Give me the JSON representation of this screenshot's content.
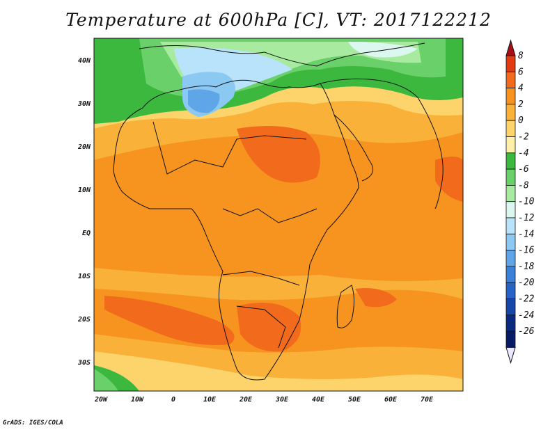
{
  "title": "Temperature at 600hPa [C], VT: 2017122212",
  "footer": "GrADS: IGES/COLA",
  "map": {
    "lat_labels": [
      "40N",
      "30N",
      "20N",
      "10N",
      "EQ",
      "10S",
      "20S",
      "30S"
    ],
    "lon_labels": [
      "20W",
      "10W",
      "0",
      "10E",
      "20E",
      "30E",
      "40E",
      "50E",
      "60E",
      "70E"
    ]
  },
  "colorbar": {
    "levels": [
      "8",
      "6",
      "4",
      "2",
      "0",
      "-2",
      "-4",
      "-6",
      "-8",
      "-10",
      "-12",
      "-14",
      "-16",
      "-18",
      "-20",
      "-22",
      "-24",
      "-26"
    ],
    "colors": [
      "#a50f15",
      "#e03b12",
      "#f26b1d",
      "#f7931f",
      "#f9b13a",
      "#fcd46b",
      "#fff0a8",
      "#3cb83f",
      "#6ad16a",
      "#a8eba0",
      "#dbf7ef",
      "#b8e3fa",
      "#8cc9f2",
      "#5fa6e8",
      "#3a82d9",
      "#2563c4",
      "#1546a8",
      "#0a2a80",
      "#061a66",
      "#ece8ff"
    ]
  }
}
